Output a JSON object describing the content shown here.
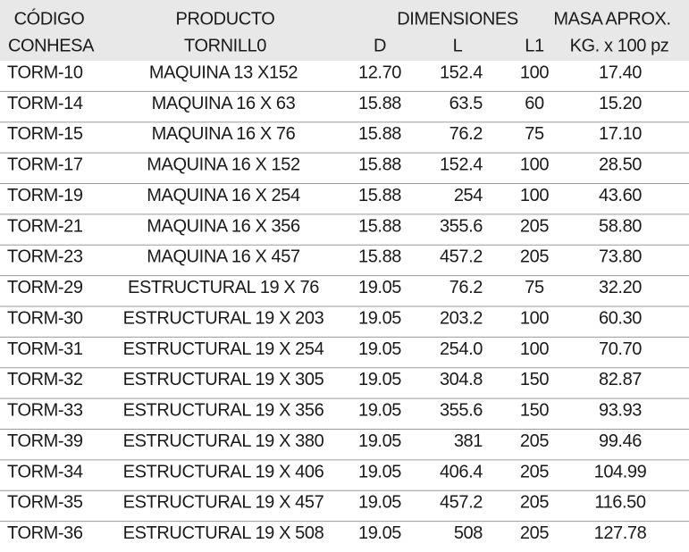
{
  "header": {
    "codigo": [
      "CÓDIGO",
      "CONHESA"
    ],
    "producto": [
      "PRODUCTO",
      "TORNILL0"
    ],
    "dimensiones": "DIMENSIONES",
    "dimension_columns": [
      "D",
      "L",
      "L1"
    ],
    "masa": [
      "MASA APROX.",
      "KG. x 100 pz"
    ]
  },
  "table": {
    "rows": [
      [
        "TORM-10",
        "MAQUINA 13 X152",
        "12.70",
        "152.4",
        "100",
        "17.40"
      ],
      [
        "TORM-14",
        "MAQUINA 16 X 63",
        "15.88",
        "63.5",
        "60",
        "15.20"
      ],
      [
        "TORM-15",
        "MAQUINA 16 X 76",
        "15.88",
        "76.2",
        "75",
        "17.10"
      ],
      [
        "TORM-17",
        "MAQUINA 16 X 152",
        "15.88",
        "152.4",
        "100",
        "28.50"
      ],
      [
        "TORM-19",
        "MAQUINA 16 X 254",
        "15.88",
        "254",
        "100",
        "43.60"
      ],
      [
        "TORM-21",
        "MAQUINA 16 X 356",
        "15.88",
        "355.6",
        "205",
        "58.80"
      ],
      [
        "TORM-23",
        "MAQUINA 16 X 457",
        "15.88",
        "457.2",
        "205",
        "73.80"
      ],
      [
        "TORM-29",
        "ESTRUCTURAL 19 X 76",
        "19.05",
        "76.2",
        "75",
        "32.20"
      ],
      [
        "TORM-30",
        "ESTRUCTURAL 19 X 203",
        "19.05",
        "203.2",
        "100",
        "60.30"
      ],
      [
        "TORM-31",
        "ESTRUCTURAL 19 X 254",
        "19.05",
        "254.0",
        "100",
        "70.70"
      ],
      [
        "TORM-32",
        "ESTRUCTURAL 19 X 305",
        "19.05",
        "304.8",
        "150",
        "82.87"
      ],
      [
        "TORM-33",
        "ESTRUCTURAL 19 X 356",
        "19.05",
        "355.6",
        "150",
        "93.93"
      ],
      [
        "TORM-39",
        "ESTRUCTURAL 19 X 380",
        "19.05",
        "381",
        "205",
        "99.46"
      ],
      [
        "TORM-34",
        "ESTRUCTURAL 19 X 406",
        "19.05",
        "406.4",
        "205",
        "104.99"
      ],
      [
        "TORM-35",
        "ESTRUCTURAL 19 X 457",
        "19.05",
        "457.2",
        "205",
        "116.50"
      ],
      [
        "TORM-36",
        "ESTRUCTURAL 19 X 508",
        "19.05",
        "508",
        "205",
        "127.78"
      ]
    ]
  }
}
